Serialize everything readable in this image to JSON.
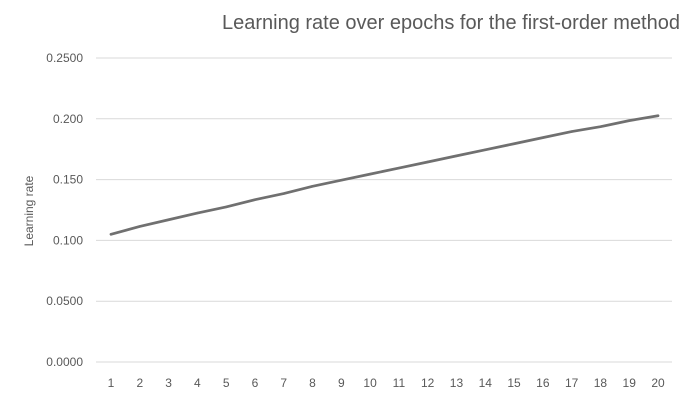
{
  "chart_data": {
    "type": "line",
    "title": "Learning rate over epochs for the first-order method",
    "xlabel": "",
    "ylabel": "Learning rate",
    "x": [
      1,
      2,
      3,
      4,
      5,
      6,
      7,
      8,
      9,
      10,
      11,
      12,
      13,
      14,
      15,
      16,
      17,
      18,
      19,
      20
    ],
    "series": [
      {
        "values": [
          0.105,
          0.1115,
          0.117,
          0.1225,
          0.1275,
          0.1335,
          0.1385,
          0.1445,
          0.1495,
          0.1545,
          0.1595,
          0.1645,
          0.1695,
          0.1745,
          0.1795,
          0.1845,
          0.1895,
          0.1935,
          0.1985,
          0.2025
        ],
        "color": "#707070"
      }
    ],
    "ylim": [
      0,
      0.25
    ],
    "yticks": [
      "0.0000",
      "0.0500",
      "0.100",
      "0.150",
      "0.200",
      "0.2500"
    ],
    "xticks": [
      "1",
      "2",
      "3",
      "4",
      "5",
      "6",
      "7",
      "8",
      "9",
      "10",
      "11",
      "12",
      "13",
      "14",
      "15",
      "16",
      "17",
      "18",
      "19",
      "20"
    ],
    "grid": true,
    "legend": "none",
    "gridline_color": "#d9d9d9",
    "text_color": "#595959"
  }
}
